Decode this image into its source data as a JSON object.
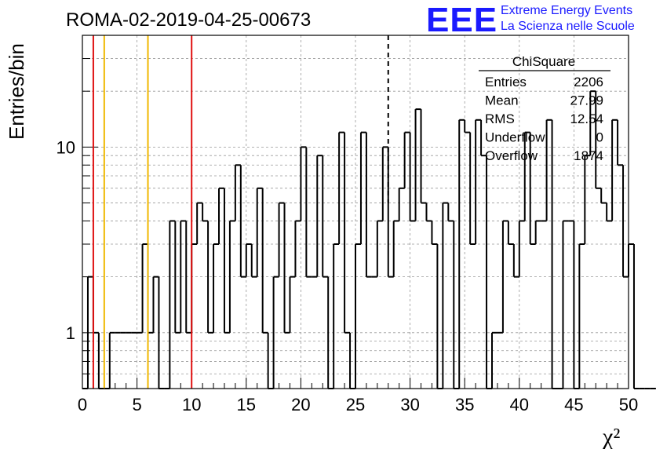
{
  "header": {
    "run_title": "ROMA-02-2019-04-25-00673",
    "logo_text": "EEE",
    "logo_line1": "Extreme Energy Events",
    "logo_line2": "La Scienza nelle Scuole",
    "brand_color": "#1a1aff"
  },
  "stats_box": {
    "title": "ChiSquare",
    "rows": [
      {
        "label": "Entries",
        "value": "2206"
      },
      {
        "label": "Mean",
        "value": "27.99"
      },
      {
        "label": "RMS",
        "value": "12.54"
      },
      {
        "label": "Underflow",
        "value": "0"
      },
      {
        "label": "Overflow",
        "value": "1874"
      }
    ]
  },
  "chart_data": {
    "type": "histogram",
    "title": "ROMA-02-2019-04-25-00673",
    "xlabel": "χ²",
    "ylabel": "Entries/bin",
    "xlim": [
      0,
      50
    ],
    "ylim": [
      0.5,
      40
    ],
    "y_scale": "log",
    "grid": true,
    "bin_width": 0.5,
    "x_ticks": [
      0,
      5,
      10,
      15,
      20,
      25,
      30,
      35,
      40,
      45,
      50
    ],
    "y_tick_labels": [
      1,
      10
    ],
    "values": [
      0,
      2,
      1,
      0,
      0,
      1,
      1,
      1,
      1,
      1,
      1,
      3,
      1,
      2,
      0,
      0,
      4,
      1,
      4,
      1,
      3,
      5,
      4,
      1,
      3,
      6,
      1,
      4,
      8,
      2,
      3,
      2,
      6,
      1,
      0,
      2,
      5,
      1,
      2,
      4,
      10,
      2,
      2,
      9,
      2,
      0,
      3,
      12,
      1,
      0,
      3,
      12,
      2,
      2,
      4,
      10,
      2,
      4,
      6,
      12,
      4,
      16,
      5,
      4,
      3,
      0,
      5,
      4,
      0,
      14,
      12,
      3,
      14,
      9,
      0,
      1,
      1,
      4,
      3,
      2,
      4,
      12,
      3,
      4,
      4,
      14,
      0,
      0,
      4,
      4,
      0,
      3,
      9,
      20,
      6,
      5,
      4,
      14,
      8,
      2,
      3,
      0,
      0,
      0,
      0,
      0,
      0,
      0,
      0,
      0,
      0,
      0,
      0,
      0,
      0,
      0,
      0,
      0,
      0,
      0
    ],
    "reference_lines": [
      {
        "x": 1,
        "color": "#e01010"
      },
      {
        "x": 2,
        "color": "#f0b800"
      },
      {
        "x": 6,
        "color": "#f0b800"
      },
      {
        "x": 10,
        "color": "#e01010"
      }
    ],
    "mean_line": {
      "x": 28,
      "style": "dashed",
      "color": "#000000"
    }
  }
}
